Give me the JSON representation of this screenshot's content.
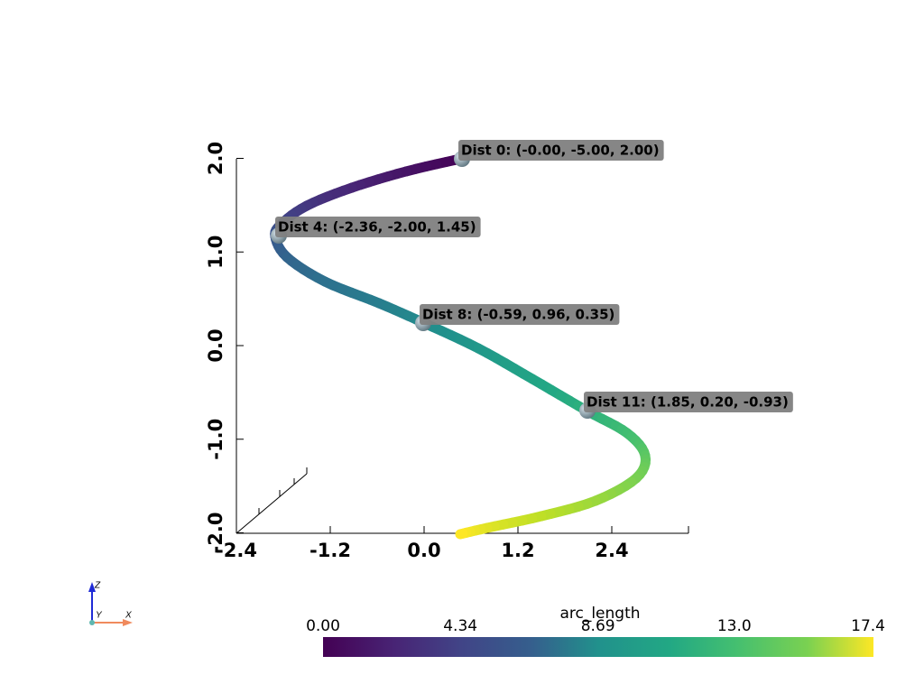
{
  "point_labels": [
    "Dist 0: (-0.00, -5.00, 2.00)",
    "Dist 4: (-2.36, -2.00, 1.45)",
    "Dist 8: (-0.59, 0.96, 0.35)",
    "Dist 11: (1.85, 0.20, -0.93)"
  ],
  "x_axis": {
    "ticks": [
      {
        "value": -2.4,
        "label": "-2.4"
      },
      -1.2,
      {
        "value": 0,
        "label": "0.0"
      },
      1.2,
      2.4
    ]
  },
  "z_axis": {
    "ticks": [
      {
        "value": 2,
        "label": "2.0"
      },
      {
        "value": 1,
        "label": "1.0"
      },
      {
        "value": 0,
        "label": "0.0"
      },
      {
        "value": -1,
        "label": "-1.0"
      },
      {
        "value": -2,
        "label": "-2.0"
      }
    ]
  },
  "colorbar": {
    "title": "arc_length",
    "colormap": "viridis",
    "ticks": [
      {
        "value": 0,
        "label": "0.00"
      },
      4.34,
      8.69,
      {
        "value": 13,
        "label": "13.0"
      },
      17.4
    ]
  },
  "orientation": {
    "x": "X",
    "y": "Y",
    "z": "Z"
  }
}
